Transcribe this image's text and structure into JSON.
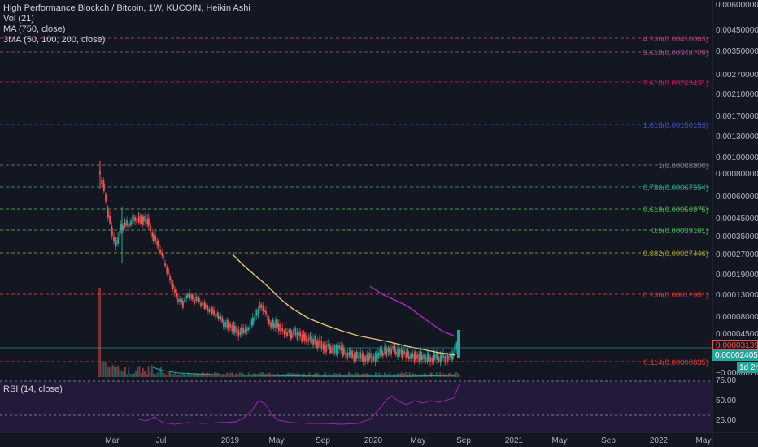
{
  "legend": {
    "title": "High Performance Blockch / Bitcoin, 1W, KUCOIN, Heikin Ashi",
    "vol": "Vol (21)",
    "ma": "MA (750, close)",
    "ma3": "3MA (50, 100, 200, close)",
    "rsi": "RSI (14, close)"
  },
  "price_axis": [
    "0.00600000",
    "0.00450000",
    "0.00350000",
    "0.00270000",
    "0.00210000",
    "0.00170000",
    "0.00130000",
    "0.00100000",
    "0.00080000",
    "0.00060000",
    "0.00045000",
    "0.00035000",
    "0.00027000",
    "0.00019000",
    "0.00013000",
    "0.00008000",
    "0.00004500",
    "−0.00000700"
  ],
  "rsi_axis": [
    "75.00",
    "50.00",
    "25.00"
  ],
  "time_axis": [
    "Mar",
    "Jul",
    "2019",
    "May",
    "Sep",
    "2020",
    "May",
    "Sep",
    "2021",
    "May",
    "Sep",
    "2022",
    "May"
  ],
  "fib_levels": [
    {
      "label": "4.236(0.00410063)",
      "color": "#b2426a"
    },
    {
      "label": "3.618(0.00348709)",
      "color": "#9c4f8a"
    },
    {
      "label": "2.618(0.00249431)",
      "color": "#c2185b"
    },
    {
      "label": "1.618(0.00150153)",
      "color": "#3f51b5"
    },
    {
      "label": "1(0.00088800)",
      "color": "#787b86"
    },
    {
      "label": "0.786(0.00067554)",
      "color": "#26a69a"
    },
    {
      "label": "0.618(0.00050875)",
      "color": "#4caf50"
    },
    {
      "label": "0.5(0.00039161)",
      "color": "#4caf50"
    },
    {
      "label": "0.382(0.00027446)",
      "color": "#9e9d24"
    },
    {
      "label": "0.236(0.00012951)",
      "color": "#e53935"
    },
    {
      "label": "0.114(0.00000835)",
      "color": "#e53935"
    }
  ],
  "price_tags": {
    "last": "0.00003139",
    "ma": "0.00002405",
    "countdown": "1d 2h"
  },
  "colors": {
    "background": "#131722",
    "up": "#26a69a",
    "down": "#ef5350",
    "ma_yellow": "#e8c77b",
    "ma_purple": "#9c27b0",
    "rsi": "#9c27b0",
    "rsi_band": "#311b4a"
  }
}
